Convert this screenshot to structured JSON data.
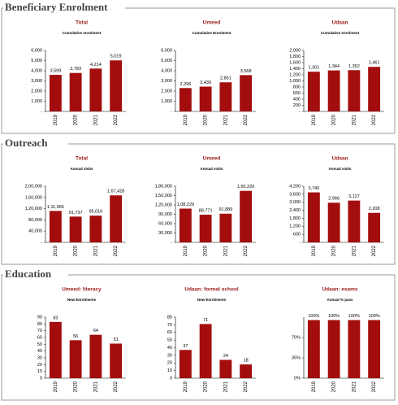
{
  "sections": [
    {
      "title": "Beneficiary Enrolment"
    },
    {
      "title": "Outreach"
    },
    {
      "title": "Education"
    }
  ],
  "chart_data": [
    {
      "type": "bar",
      "title": "Total",
      "subtitle": "Cumulative enrolment",
      "categories": [
        "2019",
        "2020",
        "2021",
        "2022"
      ],
      "values": [
        3599,
        3783,
        4214,
        5019
      ],
      "value_labels": [
        "3,599",
        "3,783",
        "4,214",
        "5,019"
      ],
      "color": "#a30d0d",
      "ylim": [
        0,
        6000
      ],
      "yticks": [
        {
          "value": 0,
          "label": "-"
        },
        {
          "value": 1000,
          "label": "1,000"
        },
        {
          "value": 2000,
          "label": "2,000"
        },
        {
          "value": 3000,
          "label": "3,000"
        },
        {
          "value": 4000,
          "label": "4,000"
        },
        {
          "value": 5000,
          "label": "5,000"
        },
        {
          "value": 6000,
          "label": "6,000"
        }
      ]
    },
    {
      "type": "bar",
      "title": "Umeed",
      "subtitle": "Cumulative Enrolment",
      "categories": [
        "2019",
        "2020",
        "2021",
        "2022"
      ],
      "values": [
        2296,
        2439,
        2861,
        3568
      ],
      "value_labels": [
        "2,296",
        "2,439",
        "2,861",
        "3,568"
      ],
      "color": "#a30d0d",
      "ylim": [
        0,
        6000
      ],
      "yticks": [
        {
          "value": 0,
          "label": "-"
        },
        {
          "value": 1000,
          "label": "1,000"
        },
        {
          "value": 2000,
          "label": "2,000"
        },
        {
          "value": 3000,
          "label": "3,000"
        },
        {
          "value": 4000,
          "label": "4,000"
        },
        {
          "value": 5000,
          "label": "5,000"
        },
        {
          "value": 6000,
          "label": "6,000"
        }
      ]
    },
    {
      "type": "bar",
      "title": "Udaan",
      "subtitle": "Cumulative enrolment",
      "categories": [
        "2019",
        "2020",
        "2021",
        "2022"
      ],
      "values": [
        1301,
        1344,
        1352,
        1461
      ],
      "value_labels": [
        "1,301",
        "1,344",
        "1,352",
        "1,461"
      ],
      "color": "#a30d0d",
      "ylim": [
        0,
        2000
      ],
      "yticks": [
        {
          "value": 0,
          "label": "-"
        },
        200,
        400,
        600,
        800,
        {
          "value": 1000,
          "label": "1,000"
        },
        {
          "value": 1200,
          "label": "1,200"
        },
        {
          "value": 1400,
          "label": "1,400"
        },
        {
          "value": 1600,
          "label": "1,600"
        },
        {
          "value": 1800,
          "label": "1,800"
        },
        {
          "value": 2000,
          "label": "2,000"
        }
      ]
    },
    {
      "type": "bar",
      "title": "Total",
      "subtitle": "Annual visits",
      "categories": [
        "2019",
        "2020",
        "2021",
        "2022"
      ],
      "values": [
        111966,
        91737,
        95016,
        167428
      ],
      "value_labels": [
        "1,11,966",
        "91,737",
        "95,016",
        "1,67,428"
      ],
      "color": "#a30d0d",
      "ylim": [
        0,
        200000
      ],
      "yticks": [
        {
          "value": 0,
          "label": "-"
        },
        {
          "value": 40000,
          "label": "40,000"
        },
        {
          "value": 80000,
          "label": "80,000"
        },
        {
          "value": 120000,
          "label": "1,20,000"
        },
        {
          "value": 160000,
          "label": "1,60,000"
        },
        {
          "value": 200000,
          "label": "2,00,000"
        }
      ]
    },
    {
      "type": "bar",
      "title": "Umeed",
      "subtitle": "Annual visits",
      "categories": [
        "2019",
        "2020",
        "2021",
        "2022"
      ],
      "values": [
        108229,
        88771,
        91889,
        165220
      ],
      "value_labels": [
        "1,08,229",
        "88,771",
        "91,889",
        "1,65,220"
      ],
      "color": "#a30d0d",
      "ylim": [
        0,
        180000
      ],
      "yticks": [
        {
          "value": 0,
          "label": "-"
        },
        {
          "value": 30000,
          "label": "30,000"
        },
        {
          "value": 60000,
          "label": "60,000"
        },
        {
          "value": 90000,
          "label": "90,000"
        },
        {
          "value": 120000,
          "label": "1,20,000"
        },
        {
          "value": 150000,
          "label": "1,50,000"
        },
        {
          "value": 180000,
          "label": "1,80,000"
        }
      ]
    },
    {
      "type": "bar",
      "title": "Udaan",
      "subtitle": "Annual visits",
      "categories": [
        "2019",
        "2020",
        "2021",
        "2022"
      ],
      "values": [
        3740,
        2966,
        3127,
        2208
      ],
      "value_labels": [
        "3,740",
        "2,966",
        "3,127",
        "2,208"
      ],
      "color": "#a30d0d",
      "ylim": [
        0,
        4200
      ],
      "yticks": [
        {
          "value": 0,
          "label": "-"
        },
        600,
        {
          "value": 1200,
          "label": "1,200"
        },
        {
          "value": 1800,
          "label": "1,800"
        },
        {
          "value": 2400,
          "label": "2,400"
        },
        {
          "value": 3000,
          "label": "3,000"
        },
        {
          "value": 3600,
          "label": "3,600"
        },
        {
          "value": 4200,
          "label": "4,200"
        }
      ]
    },
    {
      "type": "bar",
      "title": "Umeed: literacy",
      "subtitle": "New Enrolments",
      "categories": [
        "2019",
        "2020",
        "2021",
        "2022"
      ],
      "values": [
        83,
        56,
        64,
        51
      ],
      "color": "#a30d0d",
      "ylim": [
        0,
        90
      ],
      "yticks": [
        0,
        10,
        20,
        30,
        40,
        50,
        60,
        70,
        80,
        90
      ]
    },
    {
      "type": "bar",
      "title": "Udaan: formal school",
      "subtitle": "New Enrolments",
      "categories": [
        "2019",
        "2020",
        "2021",
        "2022"
      ],
      "values": [
        37,
        71,
        24,
        18
      ],
      "color": "#a30d0d",
      "ylim": [
        0,
        80
      ],
      "yticks": [
        0,
        10,
        20,
        30,
        40,
        50,
        60,
        70,
        80
      ]
    },
    {
      "type": "bar",
      "title": "Udaan: exams",
      "subtitle": "Annual % pass",
      "categories": [
        "2019",
        "2020",
        "2021",
        "2022"
      ],
      "values": [
        100,
        100,
        100,
        100
      ],
      "value_labels": [
        "100%",
        "100%",
        "100%",
        "100%"
      ],
      "color": "#a30d0d",
      "ylim": [
        0,
        105
      ],
      "yticks": [
        {
          "value": 0,
          "label": "0%"
        },
        {
          "value": 35,
          "label": "35%"
        },
        {
          "value": 70,
          "label": "70%"
        }
      ]
    }
  ]
}
